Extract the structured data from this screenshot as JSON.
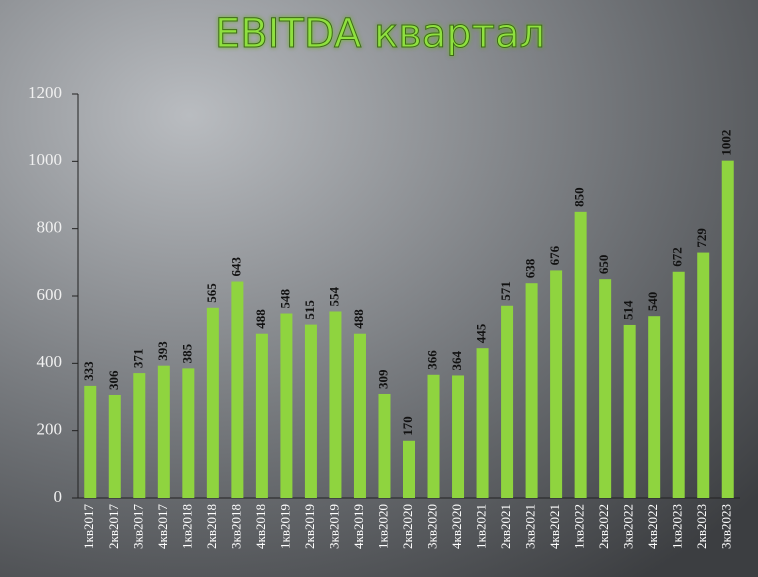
{
  "chart_data": {
    "type": "bar",
    "title": "EBITDA квартал",
    "categories": [
      "1кв2017",
      "2кв2017",
      "3кв2017",
      "4кв2017",
      "1кв2018",
      "2кв2018",
      "3кв2018",
      "4кв2018",
      "1кв2019",
      "2кв2019",
      "3кв2019",
      "4кв2019",
      "1кв2020",
      "2кв2020",
      "3кв2020",
      "4кв2020",
      "1кв2021",
      "2кв2021",
      "3кв2021",
      "4кв2021",
      "1кв2022",
      "2кв2022",
      "3кв2022",
      "4кв2022",
      "1кв2023",
      "2кв2023",
      "3кв2023"
    ],
    "values": [
      333,
      306,
      371,
      393,
      385,
      565,
      643,
      488,
      548,
      515,
      554,
      488,
      309,
      170,
      366,
      364,
      445,
      571,
      638,
      676,
      850,
      650,
      514,
      540,
      672,
      729,
      1002
    ],
    "color": "#8fd43f",
    "ylim": [
      0,
      1200
    ],
    "yticks": [
      0,
      200,
      400,
      600,
      800,
      1000,
      1200
    ],
    "grid": false
  }
}
